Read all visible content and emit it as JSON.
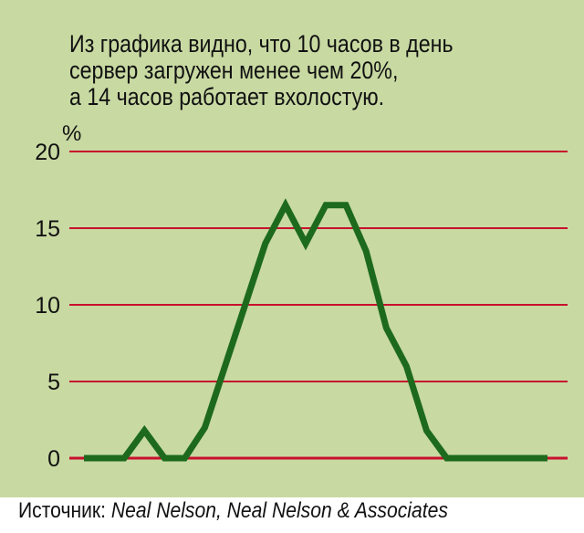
{
  "caption": {
    "line1": "Из графика видно, что 10 часов в день",
    "line2": "сервер загружен менее чем 20%,",
    "line3": "а 14 часов работает вхолостую."
  },
  "source": {
    "label": "Источник: ",
    "value": "Neal Nelson, Neal Nelson & Associates"
  },
  "colors": {
    "background": "#c8d9a2",
    "gridline": "#c8102e",
    "series": "#1d6a1d",
    "text": "#111111"
  },
  "chart_data": {
    "type": "line",
    "title": "",
    "xlabel": "",
    "ylabel": "%",
    "ylim": [
      0,
      20
    ],
    "yticks": [
      "0",
      "5",
      "10",
      "15",
      "20"
    ],
    "grid": true,
    "x": [
      1,
      2,
      3,
      4,
      5,
      6,
      7,
      8,
      9,
      10,
      11,
      12,
      13,
      14,
      15,
      16,
      17,
      18,
      19,
      20,
      21,
      22,
      23,
      24
    ],
    "series": [
      {
        "name": "",
        "values": [
          0,
          0,
          0,
          1.8,
          0,
          0,
          2,
          6,
          10,
          14,
          16.5,
          14,
          16.5,
          16.5,
          13.5,
          8.5,
          6,
          1.8,
          0,
          0,
          0,
          0,
          0,
          0
        ]
      }
    ]
  }
}
